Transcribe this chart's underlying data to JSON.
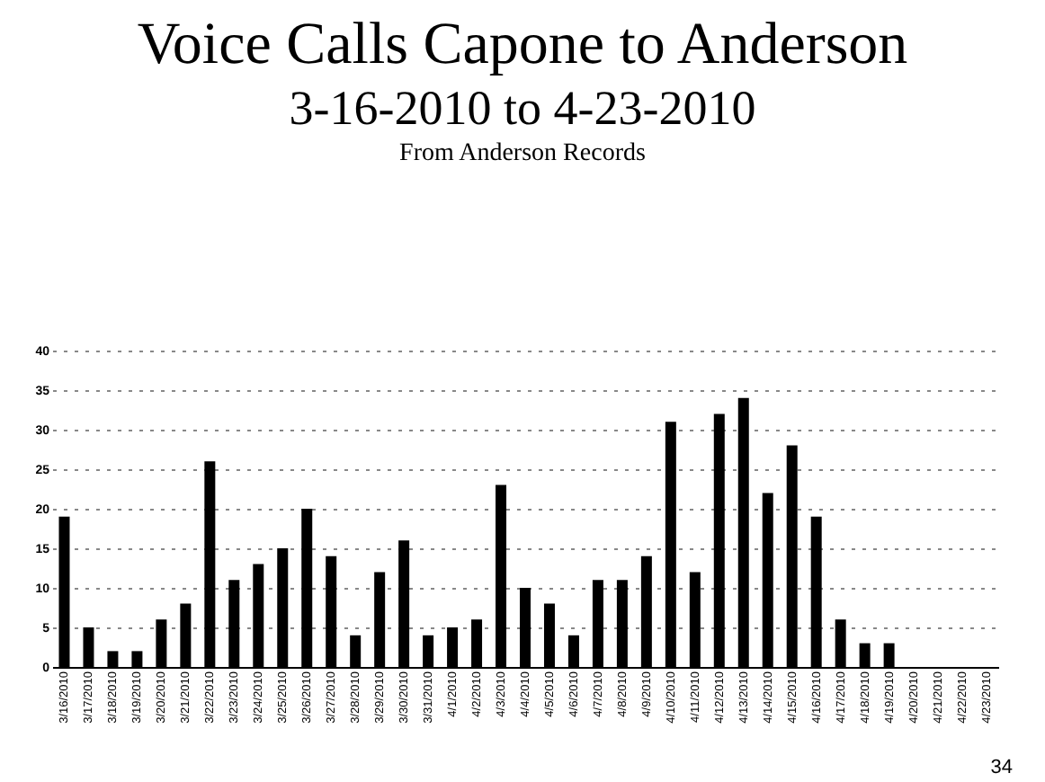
{
  "chart_data": {
    "type": "bar",
    "title": "Voice Calls Capone to Anderson",
    "subtitle": "3-16-2010 to 4-23-2010",
    "annotations": [
      "From Anderson Records",
      "34"
    ],
    "categories": [
      "3/16/2010",
      "3/17/2010",
      "3/18/2010",
      "3/19/2010",
      "3/20/2010",
      "3/21/2010",
      "3/22/2010",
      "3/23/2010",
      "3/24/2010",
      "3/25/2010",
      "3/26/2010",
      "3/27/2010",
      "3/28/2010",
      "3/29/2010",
      "3/30/2010",
      "3/31/2010",
      "4/1/2010",
      "4/2/2010",
      "4/3/2010",
      "4/4/2010",
      "4/5/2010",
      "4/6/2010",
      "4/7/2010",
      "4/8/2010",
      "4/9/2010",
      "4/10/2010",
      "4/11/2010",
      "4/12/2010",
      "4/13/2010",
      "4/14/2010",
      "4/15/2010",
      "4/16/2010",
      "4/17/2010",
      "4/18/2010",
      "4/19/2010",
      "4/20/2010",
      "4/21/2010",
      "4/22/2010",
      "4/23/2010"
    ],
    "values": [
      19,
      5,
      2,
      2,
      6,
      8,
      26,
      11,
      13,
      15,
      20,
      14,
      4,
      12,
      16,
      4,
      5,
      6,
      23,
      10,
      8,
      4,
      11,
      11,
      14,
      31,
      12,
      32,
      34,
      22,
      28,
      19,
      6,
      3,
      3,
      0,
      0,
      0,
      0
    ],
    "color": "#000000",
    "ylim": [
      0,
      40
    ],
    "yticks": [
      0,
      5,
      10,
      15,
      20,
      25,
      30,
      35,
      40
    ],
    "grid": "y"
  }
}
